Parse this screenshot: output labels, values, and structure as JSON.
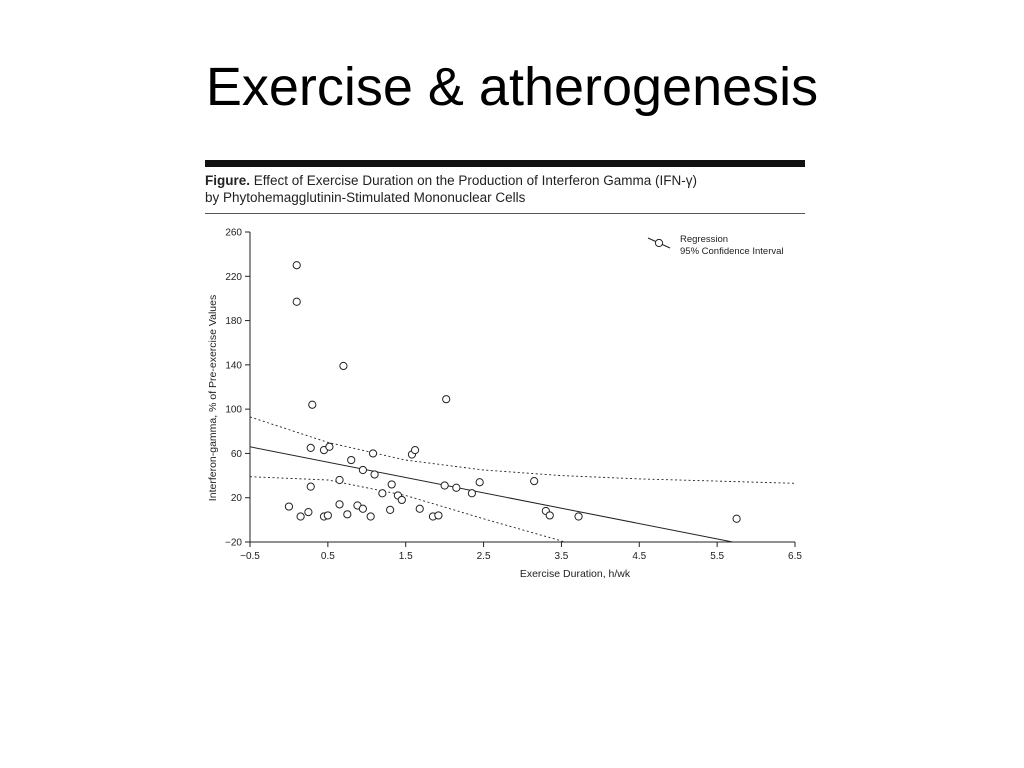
{
  "slide": {
    "title": "Exercise & atherogenesis"
  },
  "figure": {
    "caption_lead": "Figure.",
    "caption_line1": " Effect of Exercise Duration on the Production of Interferon Gamma (IFN-γ)",
    "caption_line2": "by Phytohemagglutinin-Stimulated Mononuclear Cells"
  },
  "chart_data": {
    "type": "scatter",
    "xlabel": "Exercise Duration, h/wk",
    "ylabel": "Interferon-gamma, % of Pre-exercise Values",
    "xlim": [
      -0.5,
      6.5
    ],
    "ylim": [
      -20,
      260
    ],
    "xticks": [
      -0.5,
      0.5,
      1.5,
      2.5,
      3.5,
      4.5,
      5.5,
      6.5
    ],
    "xtick_labels": [
      "−0.5",
      "0.5",
      "1.5",
      "2.5",
      "3.5",
      "4.5",
      "5.5",
      "6.5"
    ],
    "yticks": [
      -20,
      20,
      60,
      100,
      140,
      180,
      220,
      260
    ],
    "ytick_labels": [
      "−20",
      "20",
      "60",
      "100",
      "140",
      "180",
      "220",
      "260"
    ],
    "grid": false,
    "legend": {
      "position": "top-right",
      "entries": [
        {
          "label": "Regression",
          "style": "line-with-circle"
        },
        {
          "label": "95% Confidence Interval",
          "style": "dotted"
        }
      ]
    },
    "points": [
      {
        "x": 0.0,
        "y": 12
      },
      {
        "x": 0.1,
        "y": 230
      },
      {
        "x": 0.1,
        "y": 197
      },
      {
        "x": 0.15,
        "y": 3
      },
      {
        "x": 0.25,
        "y": 7
      },
      {
        "x": 0.28,
        "y": 65
      },
      {
        "x": 0.28,
        "y": 30
      },
      {
        "x": 0.3,
        "y": 104
      },
      {
        "x": 0.45,
        "y": 3
      },
      {
        "x": 0.45,
        "y": 63
      },
      {
        "x": 0.5,
        "y": 4
      },
      {
        "x": 0.52,
        "y": 66
      },
      {
        "x": 0.65,
        "y": 14
      },
      {
        "x": 0.65,
        "y": 36
      },
      {
        "x": 0.7,
        "y": 139
      },
      {
        "x": 0.75,
        "y": 5
      },
      {
        "x": 0.8,
        "y": 54
      },
      {
        "x": 0.88,
        "y": 13
      },
      {
        "x": 0.95,
        "y": 45
      },
      {
        "x": 0.95,
        "y": 10
      },
      {
        "x": 1.05,
        "y": 3
      },
      {
        "x": 1.08,
        "y": 60
      },
      {
        "x": 1.1,
        "y": 41
      },
      {
        "x": 1.2,
        "y": 24
      },
      {
        "x": 1.3,
        "y": 9
      },
      {
        "x": 1.32,
        "y": 32
      },
      {
        "x": 1.4,
        "y": 22
      },
      {
        "x": 1.45,
        "y": 18
      },
      {
        "x": 1.58,
        "y": 59
      },
      {
        "x": 1.62,
        "y": 63
      },
      {
        "x": 1.68,
        "y": 10
      },
      {
        "x": 1.85,
        "y": 3
      },
      {
        "x": 1.92,
        "y": 4
      },
      {
        "x": 2.0,
        "y": 31
      },
      {
        "x": 2.02,
        "y": 109
      },
      {
        "x": 2.15,
        "y": 29
      },
      {
        "x": 2.35,
        "y": 24
      },
      {
        "x": 2.45,
        "y": 34
      },
      {
        "x": 3.15,
        "y": 35
      },
      {
        "x": 3.3,
        "y": 8
      },
      {
        "x": 3.35,
        "y": 4
      },
      {
        "x": 3.72,
        "y": 3
      },
      {
        "x": 5.75,
        "y": 1
      }
    ],
    "regression": [
      [
        -0.5,
        66
      ],
      [
        5.7,
        -20
      ]
    ],
    "ci_upper": [
      [
        -0.5,
        93
      ],
      [
        0.5,
        70
      ],
      [
        1.5,
        54
      ],
      [
        2.5,
        45
      ],
      [
        3.5,
        40
      ],
      [
        4.5,
        37
      ],
      [
        5.5,
        35
      ],
      [
        6.5,
        33
      ]
    ],
    "ci_lower": [
      [
        -0.5,
        39
      ],
      [
        0.5,
        36
      ],
      [
        1.5,
        22
      ],
      [
        2.5,
        1
      ],
      [
        3.5,
        -19
      ],
      [
        3.9,
        -30
      ]
    ]
  },
  "colors": {
    "ink": "#222222",
    "figure_bar": "#111111",
    "background": "#ffffff"
  }
}
